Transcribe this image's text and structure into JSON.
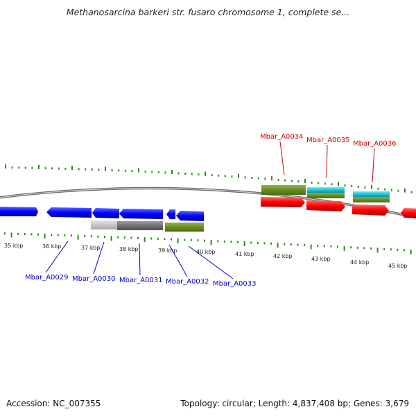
{
  "title": "Methanosarcina barkeri str. fusaro chromosome 1, complete se...",
  "footer": {
    "accession": "Accession: NC_007355",
    "summary": "Topology: circular; Length: 4,837,408 bp; Genes: 3,679"
  },
  "kbp_labels": [
    "35 kbp",
    "36 kbp",
    "37 kbp",
    "38 kbp",
    "39 kbp",
    "40 kbp",
    "41 kbp",
    "42 kbp",
    "43 kbp",
    "44 kbp",
    "45 kbp"
  ],
  "genes_top": [
    {
      "name": "Mbar_A0034",
      "color": "#cc0000"
    },
    {
      "name": "Mbar_A0035",
      "color": "#cc0000"
    },
    {
      "name": "Mbar_A0036",
      "color": "#cc0000"
    }
  ],
  "genes_bottom": [
    {
      "name": "Mbar_A0029",
      "color": "#0000cc"
    },
    {
      "name": "Mbar_A0030",
      "color": "#0000cc"
    },
    {
      "name": "Mbar_A0031",
      "color": "#0000cc"
    },
    {
      "name": "Mbar_A0032",
      "color": "#0000cc"
    },
    {
      "name": "Mbar_A0033",
      "color": "#0000cc"
    }
  ],
  "colors": {
    "forward_cds": "#ff0000",
    "reverse_cds": "#0000ff",
    "tick": "#2a8a1a",
    "backbone": "#808080",
    "cog_green": "#6b8e23",
    "cog_cyan": "#19c6d6",
    "cog_gray_light": "#c8c8c8",
    "cog_gray_dark": "#707070"
  }
}
